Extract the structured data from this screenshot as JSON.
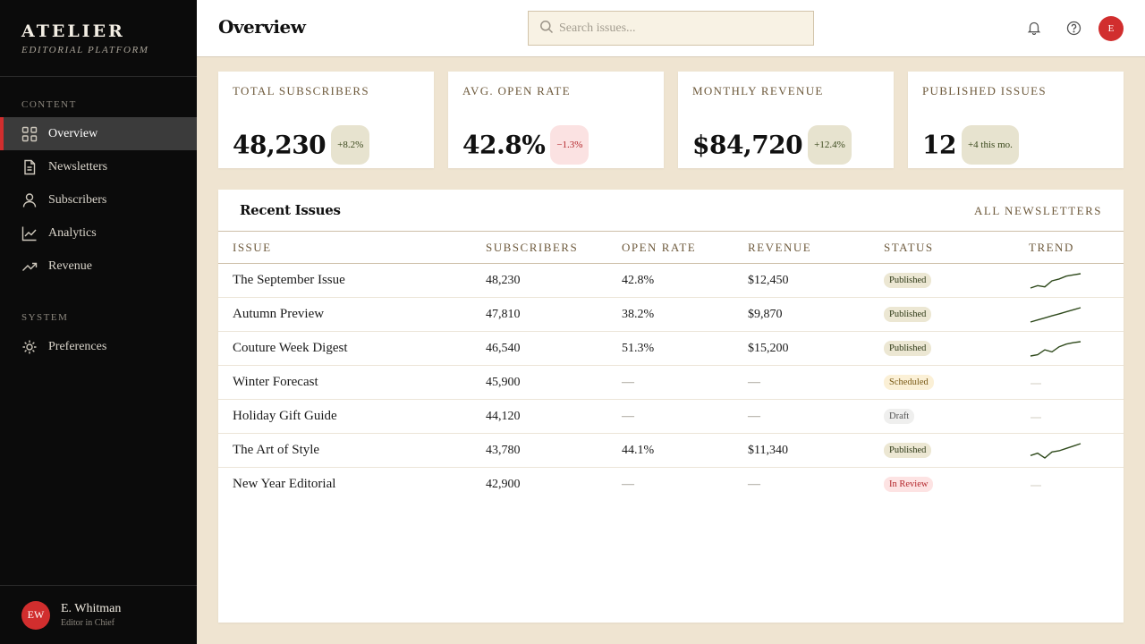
{
  "sidebar": {
    "brand_name": "ATELIER",
    "brand_sub": "EDITORIAL PLATFORM",
    "section_content": "CONTENT",
    "section_system": "SYSTEM",
    "items": [
      {
        "label": "Overview",
        "icon": "grid-icon",
        "active": true
      },
      {
        "label": "Newsletters",
        "icon": "document-icon"
      },
      {
        "label": "Subscribers",
        "icon": "user-icon"
      },
      {
        "label": "Analytics",
        "icon": "line-chart-icon"
      },
      {
        "label": "Revenue",
        "icon": "trending-up-icon"
      }
    ],
    "system_items": [
      {
        "label": "Preferences",
        "icon": "sun-gear-icon"
      }
    ],
    "user": {
      "initials": "EW",
      "name": "E. Whitman",
      "role": "Editor in Chief"
    }
  },
  "header": {
    "title": "Overview",
    "search_placeholder": "Search issues...",
    "avatar_initial": "E",
    "icons": [
      "bell-icon",
      "help-icon"
    ]
  },
  "stats": [
    {
      "label": "TOTAL SUBSCRIBERS",
      "value": "48,230",
      "delta": "+8.2%",
      "direction": "up"
    },
    {
      "label": "AVG. OPEN RATE",
      "value": "42.8%",
      "delta": "−1.3%",
      "direction": "down"
    },
    {
      "label": "MONTHLY REVENUE",
      "value": "$84,720",
      "delta": "+12.4%",
      "direction": "up"
    },
    {
      "label": "PUBLISHED ISSUES",
      "value": "12",
      "delta": "+4 this mo.",
      "direction": "up"
    }
  ],
  "recent": {
    "title": "Recent Issues",
    "link": "ALL NEWSLETTERS",
    "columns": [
      "ISSUE",
      "SUBSCRIBERS",
      "OPEN RATE",
      "REVENUE",
      "STATUS",
      "TREND"
    ],
    "rows": [
      {
        "issue": "The September Issue",
        "subscribers": "48,230",
        "open_rate": "42.8%",
        "revenue": "$12,450",
        "status": "Published",
        "trend": [
          2,
          3,
          2.5,
          5,
          5.8,
          7,
          7.5,
          8
        ]
      },
      {
        "issue": "Autumn Preview",
        "subscribers": "47,810",
        "open_rate": "38.2%",
        "revenue": "$9,870",
        "status": "Published",
        "trend": [
          1,
          2,
          3,
          4,
          5,
          6,
          7,
          8
        ]
      },
      {
        "issue": "Couture Week Digest",
        "subscribers": "46,540",
        "open_rate": "51.3%",
        "revenue": "$15,200",
        "status": "Published",
        "trend": [
          1,
          1.6,
          4,
          3,
          5.5,
          6.8,
          7.5,
          8
        ]
      },
      {
        "issue": "Winter Forecast",
        "subscribers": "45,900",
        "open_rate": "—",
        "revenue": "—",
        "status": "Scheduled",
        "trend": null
      },
      {
        "issue": "Holiday Gift Guide",
        "subscribers": "44,120",
        "open_rate": "—",
        "revenue": "—",
        "status": "Draft",
        "trend": null
      },
      {
        "issue": "The Art of Style",
        "subscribers": "43,780",
        "open_rate": "44.1%",
        "revenue": "$11,340",
        "status": "Published",
        "trend": [
          3,
          4,
          2,
          4.5,
          5,
          6,
          7,
          8
        ]
      },
      {
        "issue": "New Year Editorial",
        "subscribers": "42,900",
        "open_rate": "—",
        "revenue": "—",
        "status": "In Review",
        "trend": null
      }
    ]
  },
  "colors": {
    "accent": "#d12e2e",
    "sidebar_bg": "#0b0b0b",
    "page_bg": "#efe4d1",
    "trend_line": "#2f4a1c"
  }
}
